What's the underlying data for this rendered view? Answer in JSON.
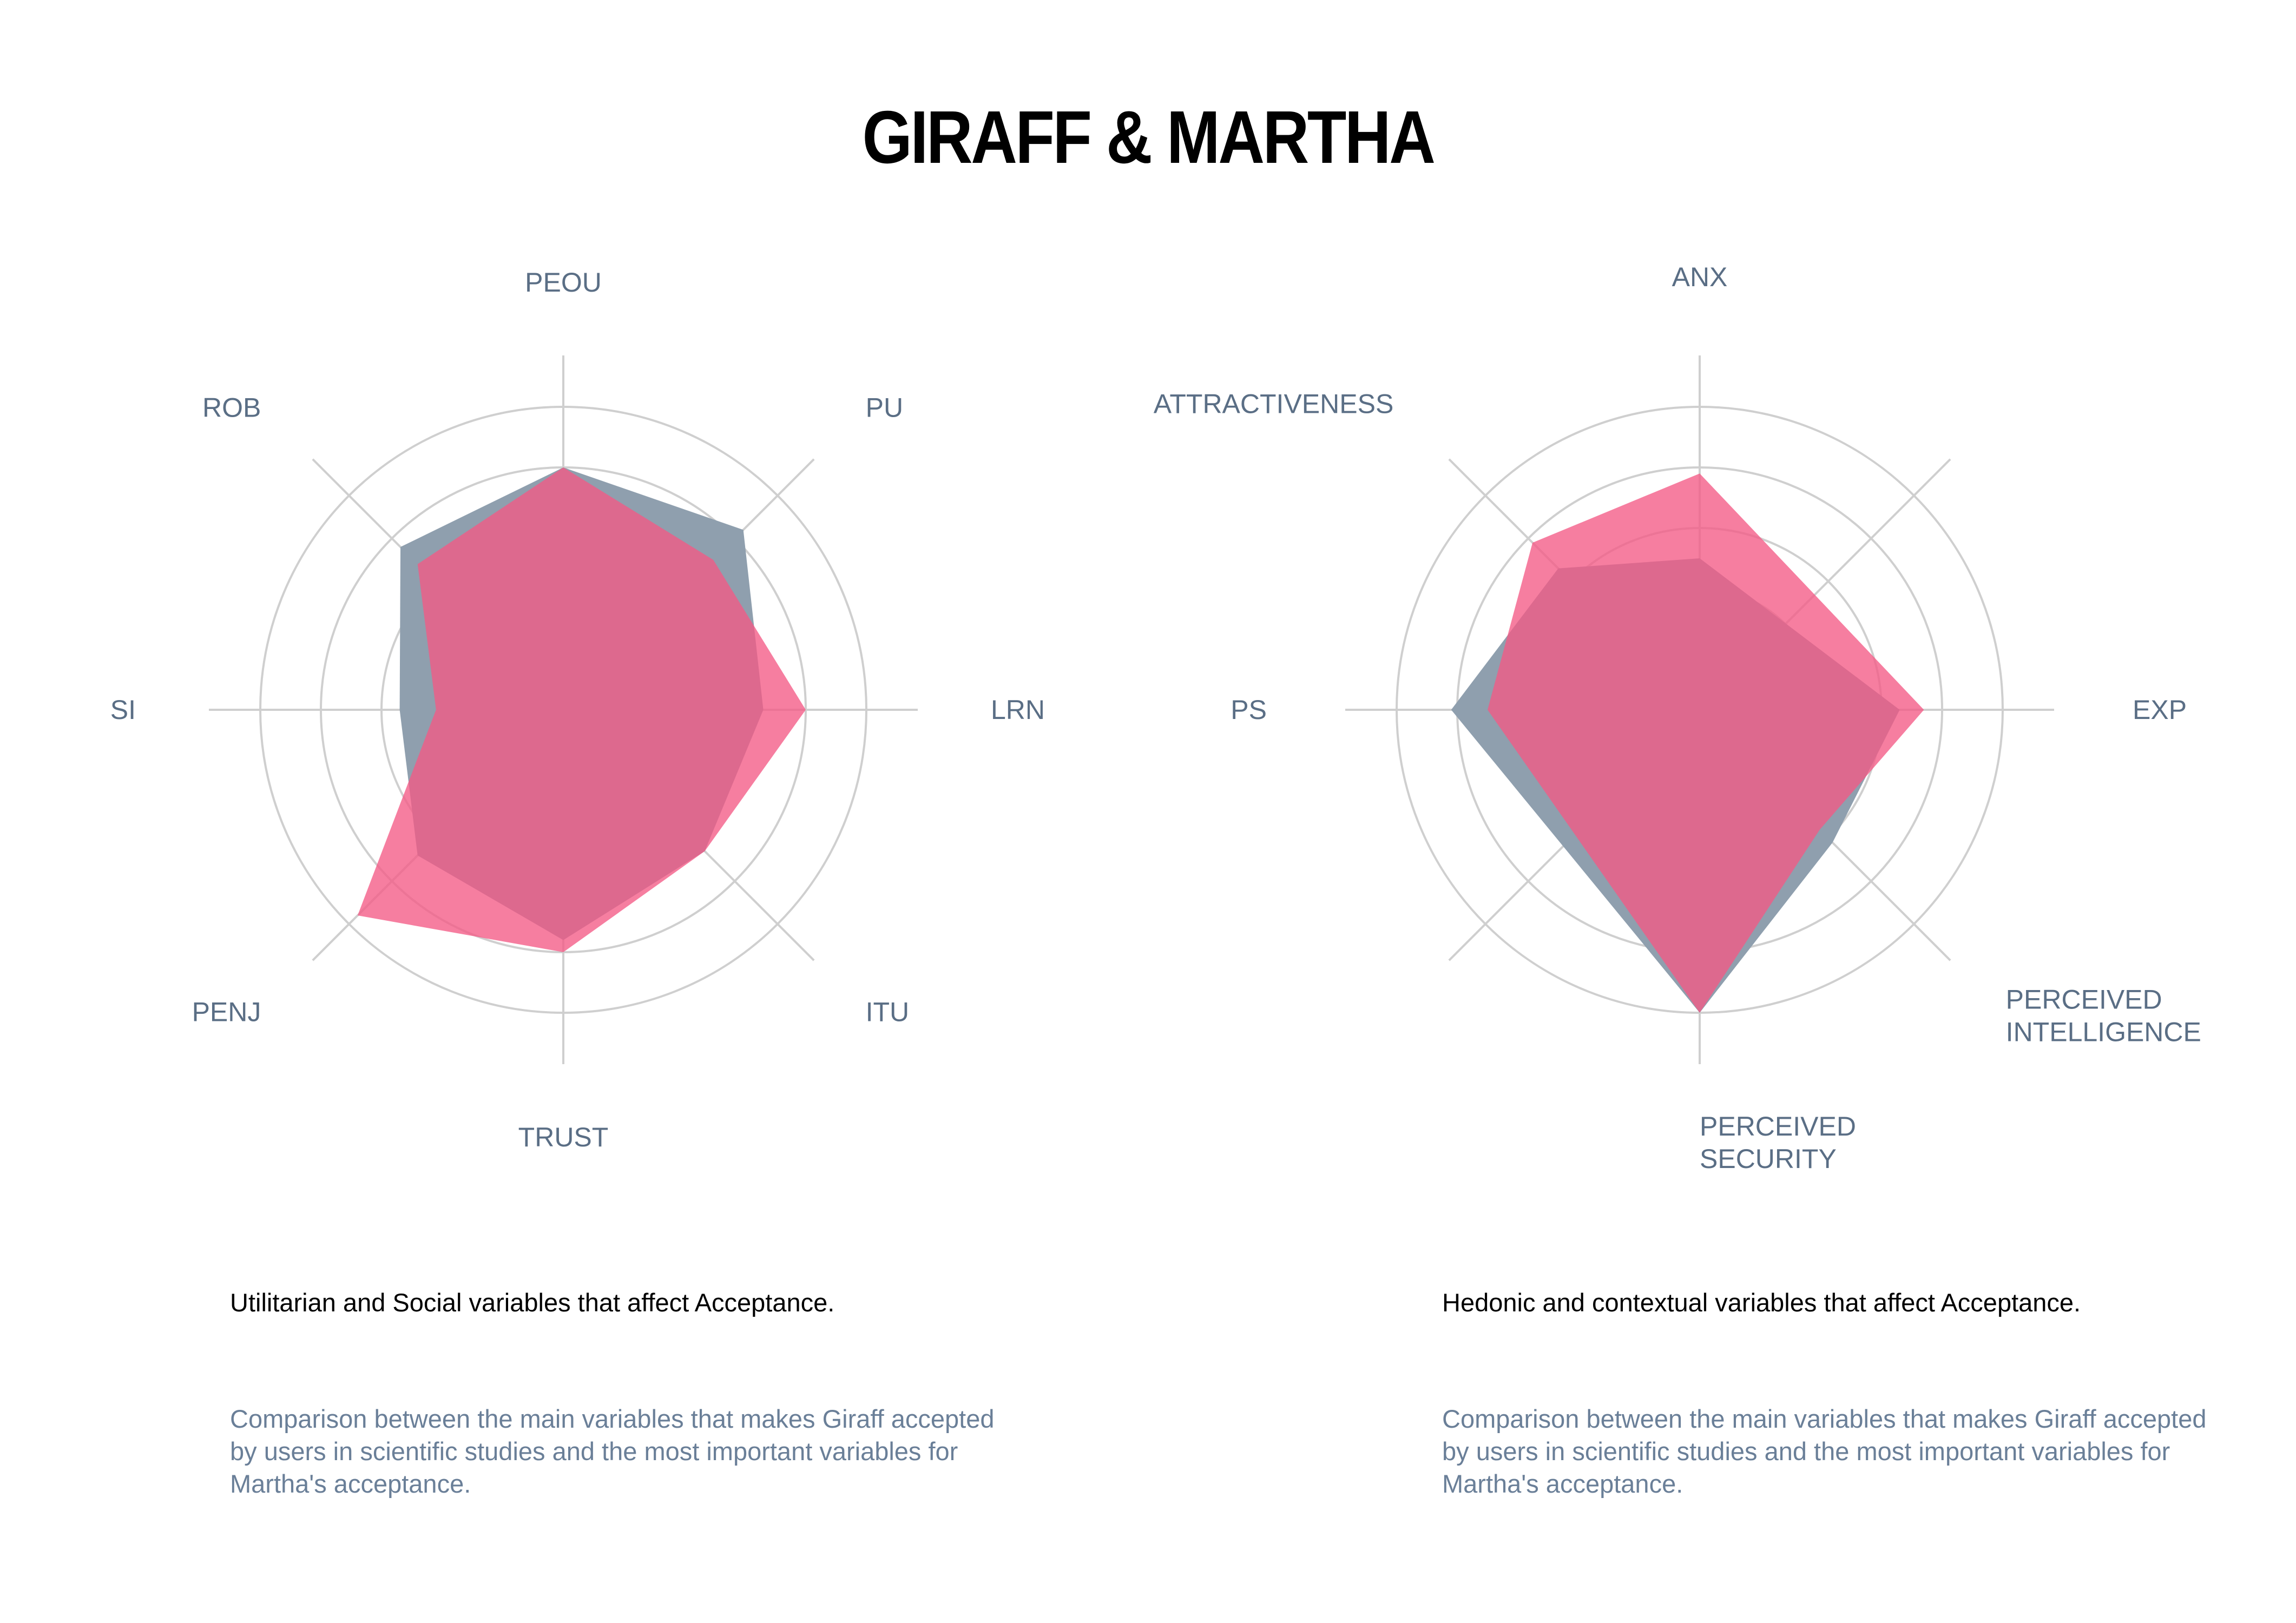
{
  "title": "GIRAFF & MARTHA",
  "colors": {
    "giraff": "#8f9fae",
    "martha": "#f35a85",
    "overlap": "#c9587e",
    "grid": "#cfcfcf",
    "label": "#5a6e85"
  },
  "chart_data": [
    {
      "type": "radar",
      "title": "",
      "axes": [
        "PEOU",
        "PU",
        "LRN",
        "ITU",
        "TRUST",
        "PENJ",
        "SI",
        "ROB"
      ],
      "axis_label_lines": [
        [
          "PEOU"
        ],
        [
          "PU"
        ],
        [
          "LRN"
        ],
        [
          "ITU"
        ],
        [
          "TRUST"
        ],
        [
          "PENJ"
        ],
        [
          "SI"
        ],
        [
          "ROB"
        ]
      ],
      "scale_max": 5,
      "rings": [
        1,
        2,
        3,
        4,
        5
      ],
      "grid": true,
      "legend": "none",
      "series": [
        {
          "key": "giraff",
          "values": [
            4.0,
            4.2,
            3.3,
            3.3,
            3.8,
            3.4,
            2.7,
            3.8
          ]
        },
        {
          "key": "martha",
          "values": [
            4.0,
            3.5,
            4.0,
            3.3,
            4.0,
            4.8,
            2.1,
            3.4
          ]
        }
      ]
    },
    {
      "type": "radar",
      "title": "",
      "axes": [
        "ANX",
        "EXP",
        "PERCEIVED INTELLIGENCE",
        "PERCEIVED SECURITY",
        "PS",
        "ATTRACTIVENESS"
      ],
      "axis_label_lines": [
        [
          "ANX"
        ],
        [
          "EXP"
        ],
        [
          "PERCEIVED",
          "INTELLIGENCE"
        ],
        [
          "PERCEIVED",
          "SECURITY"
        ],
        [
          "PS"
        ],
        [
          "ATTRACTIVENESS"
        ]
      ],
      "scale_max": 5,
      "rings": [
        1,
        2,
        3,
        4,
        5
      ],
      "grid": true,
      "legend": "none",
      "series": [
        {
          "key": "giraff",
          "values": [
            2.5,
            3.3,
            3.1,
            5.0,
            4.1,
            3.3
          ],
          "pattern": [
            0,
            1,
            1.5,
            2,
            2.5,
            3.5
          ]
        },
        {
          "key": "martha",
          "values": [
            3.9,
            3.7,
            2.8,
            5.0,
            3.5,
            3.9
          ],
          "pattern": [
            0,
            1,
            1.5,
            2,
            2.5,
            3.5
          ]
        }
      ]
    }
  ],
  "captions": [
    {
      "title": "Utilitarian and Social variables that affect Acceptance.",
      "description": "Comparison between the main variables that makes Giraff accepted by users in scientific studies and the most important variables for Martha's acceptance."
    },
    {
      "title": "Hedonic and contextual variables that affect Acceptance.",
      "description": "Comparison between the main variables that makes Giraff accepted by users in scientific studies and the most important variables for Martha's acceptance."
    }
  ]
}
